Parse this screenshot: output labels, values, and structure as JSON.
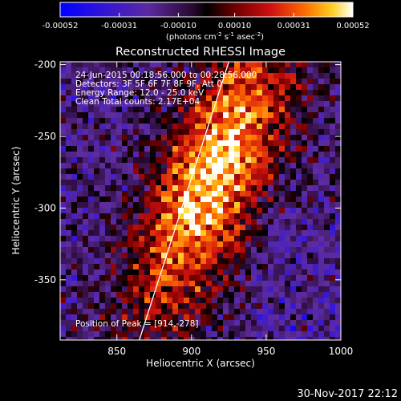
{
  "chart_data": {
    "type": "heatmap",
    "title": "Reconstructed RHESSI Image",
    "xlabel": "Heliocentric X (arcsec)",
    "ylabel": "Heliocentric Y (arcsec)",
    "xlim": [
      812,
      1000
    ],
    "ylim": [
      -392,
      -198
    ],
    "xticks": [
      "850",
      "900",
      "950",
      "1000"
    ],
    "xtick_values": [
      850,
      900,
      950,
      1000
    ],
    "yticks": [
      "-200",
      "-250",
      "-300",
      "-350"
    ],
    "ytick_values": [
      -200,
      -250,
      -300,
      -350
    ],
    "colorbar": {
      "ticks": [
        "-0.00052",
        "-0.00031",
        "-0.00010",
        "0.00010",
        "0.00031",
        "0.00052"
      ],
      "tick_values": [
        -0.00052,
        -0.00031,
        -0.0001,
        0.0001,
        0.00031,
        0.00052
      ],
      "range": [
        -0.00052,
        0.00052
      ],
      "label_main": "(photons cm",
      "label_exp1": "-2",
      "label_mid1": " s",
      "label_exp2": "-1",
      "label_mid2": " asec",
      "label_exp3": "-2",
      "label_end": ")",
      "colormap": "blue-purple-red-yellow-white"
    },
    "annotations": [
      "24-Jun-2015 00:18:56.000 to 00:28:56.000",
      "Detectors: 3F 5F 6F 7F 8F 9F, Att 0",
      "Energy Range: 12.0 - 25.0 keV",
      "Clean    Total counts: 2.17E+04"
    ],
    "peak_label": "Position of Peak = [914,-278]",
    "peak": [
      914,
      -278
    ],
    "limb_line": [
      [
        865,
        -392
      ],
      [
        925,
        -198
      ]
    ],
    "grid": false
  },
  "footer": {
    "date": "30-Nov-2017 22:12"
  }
}
